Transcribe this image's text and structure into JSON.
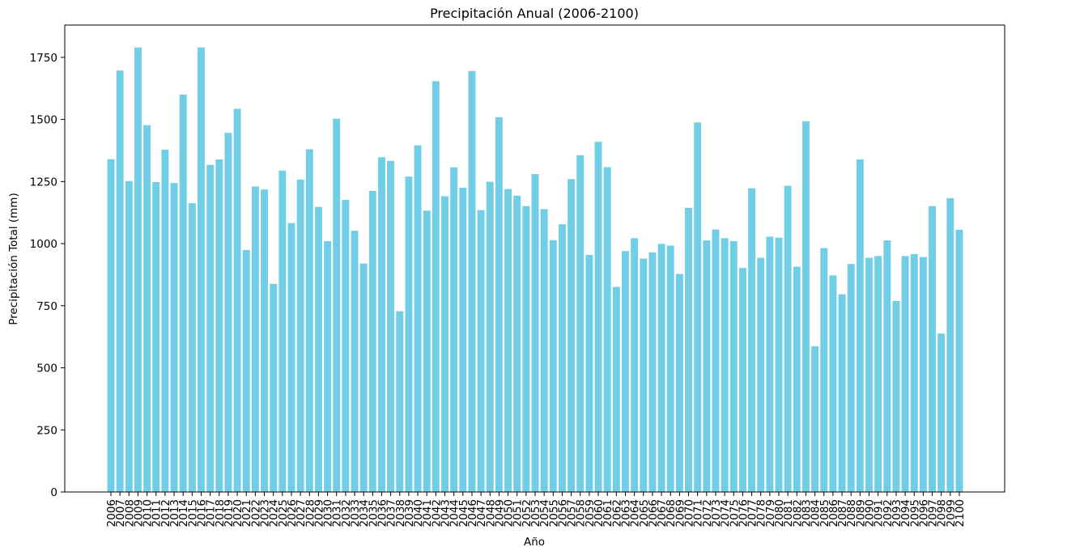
{
  "chart_data": {
    "type": "bar",
    "title": "Precipitación Anual (2006-2100)",
    "xlabel": "Año",
    "ylabel": "Precipitación Total (mm)",
    "ylim": [
      0,
      1880
    ],
    "yticks": [
      0,
      250,
      500,
      750,
      1000,
      1250,
      1500,
      1750
    ],
    "bar_color": "#70cfe6",
    "grid": false,
    "categories": [
      "2006",
      "2007",
      "2008",
      "2009",
      "2010",
      "2011",
      "2012",
      "2013",
      "2014",
      "2015",
      "2016",
      "2017",
      "2018",
      "2019",
      "2020",
      "2021",
      "2022",
      "2023",
      "2024",
      "2025",
      "2026",
      "2027",
      "2028",
      "2029",
      "2030",
      "2031",
      "2032",
      "2033",
      "2034",
      "2035",
      "2036",
      "2037",
      "2038",
      "2039",
      "2040",
      "2041",
      "2042",
      "2043",
      "2044",
      "2045",
      "2046",
      "2047",
      "2048",
      "2049",
      "2050",
      "2051",
      "2052",
      "2053",
      "2054",
      "2055",
      "2056",
      "2057",
      "2058",
      "2059",
      "2060",
      "2061",
      "2062",
      "2063",
      "2064",
      "2065",
      "2066",
      "2067",
      "2068",
      "2069",
      "2070",
      "2071",
      "2072",
      "2073",
      "2074",
      "2075",
      "2076",
      "2077",
      "2078",
      "2079",
      "2080",
      "2081",
      "2082",
      "2083",
      "2084",
      "2085",
      "2086",
      "2087",
      "2088",
      "2089",
      "2090",
      "2091",
      "2092",
      "2093",
      "2094",
      "2095",
      "2096",
      "2097",
      "2098",
      "2099",
      "2100"
    ],
    "values": [
      1340,
      1697,
      1252,
      1790,
      1477,
      1248,
      1378,
      1244,
      1600,
      1163,
      1790,
      1317,
      1339,
      1446,
      1543,
      974,
      1230,
      1218,
      838,
      1294,
      1083,
      1258,
      1380,
      1148,
      1010,
      1503,
      1176,
      1052,
      920,
      1212,
      1348,
      1333,
      728,
      1270,
      1396,
      1133,
      1654,
      1191,
      1307,
      1225,
      1695,
      1135,
      1249,
      1509,
      1220,
      1193,
      1151,
      1280,
      1139,
      1014,
      1078,
      1260,
      1356,
      955,
      1410,
      1308,
      826,
      970,
      1022,
      940,
      965,
      999,
      992,
      878,
      1144,
      1488,
      1013,
      1057,
      1022,
      1010,
      902,
      1223,
      943,
      1028,
      1024,
      1233,
      907,
      1493,
      587,
      982,
      872,
      796,
      918,
      1339,
      943,
      950,
      1013,
      769,
      950,
      958,
      946,
      1151,
      638,
      1183,
      1056
    ]
  }
}
